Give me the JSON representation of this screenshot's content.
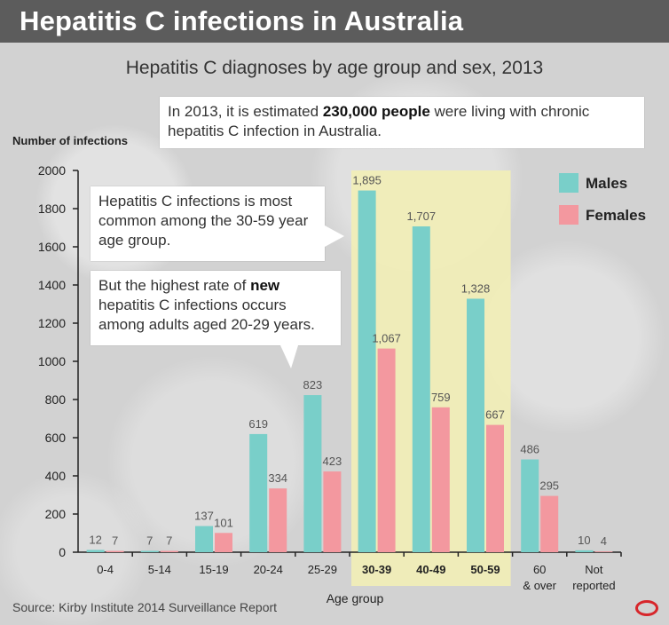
{
  "header": {
    "title": "Hepatitis C infections in Australia"
  },
  "subtitle": "Hepatitis C diagnoses by age group and sex, 2013",
  "notes": {
    "estimate_pre": "In 2013, it is estimated ",
    "estimate_bold": "230,000 people",
    "estimate_post": " were living with chronic hepatitis C infection in Australia.",
    "common": "Hepatitis C infections is most common among the 30-59 year age group.",
    "highest_pre": "But the highest rate of ",
    "highest_bold": "new",
    "highest_post": " hepatitis C infections occurs among adults aged 20-29 years."
  },
  "source": "Source: Kirby Institute 2014 Surveillance Report",
  "colors": {
    "males": "#79cfc9",
    "females": "#f3989f",
    "highlight": "#f2eeb6"
  },
  "chart_data": {
    "type": "bar",
    "ylabel": "Number of infections",
    "xlabel": "Age group",
    "ylim": [
      0,
      2000
    ],
    "yticks": [
      0,
      200,
      400,
      600,
      800,
      1000,
      1200,
      1400,
      1600,
      1800,
      2000
    ],
    "categories": [
      "0-4",
      "5-14",
      "15-19",
      "20-24",
      "25-29",
      "30-39",
      "40-49",
      "50-59",
      "60\n& over",
      "Not\nreported"
    ],
    "highlighted": [
      "30-39",
      "40-49",
      "50-59"
    ],
    "legend_position": "top-right",
    "series": [
      {
        "name": "Males",
        "values": [
          12,
          7,
          137,
          619,
          823,
          1895,
          1707,
          1328,
          486,
          10
        ],
        "labels": [
          "12",
          "7",
          "137",
          "619",
          "823",
          "1,895",
          "1,707",
          "1,328",
          "486",
          "10"
        ]
      },
      {
        "name": "Females",
        "values": [
          7,
          7,
          101,
          334,
          423,
          1067,
          759,
          667,
          295,
          4
        ],
        "labels": [
          "7",
          "7",
          "101",
          "334",
          "423",
          "1,067",
          "759",
          "667",
          "295",
          "4"
        ]
      }
    ]
  }
}
